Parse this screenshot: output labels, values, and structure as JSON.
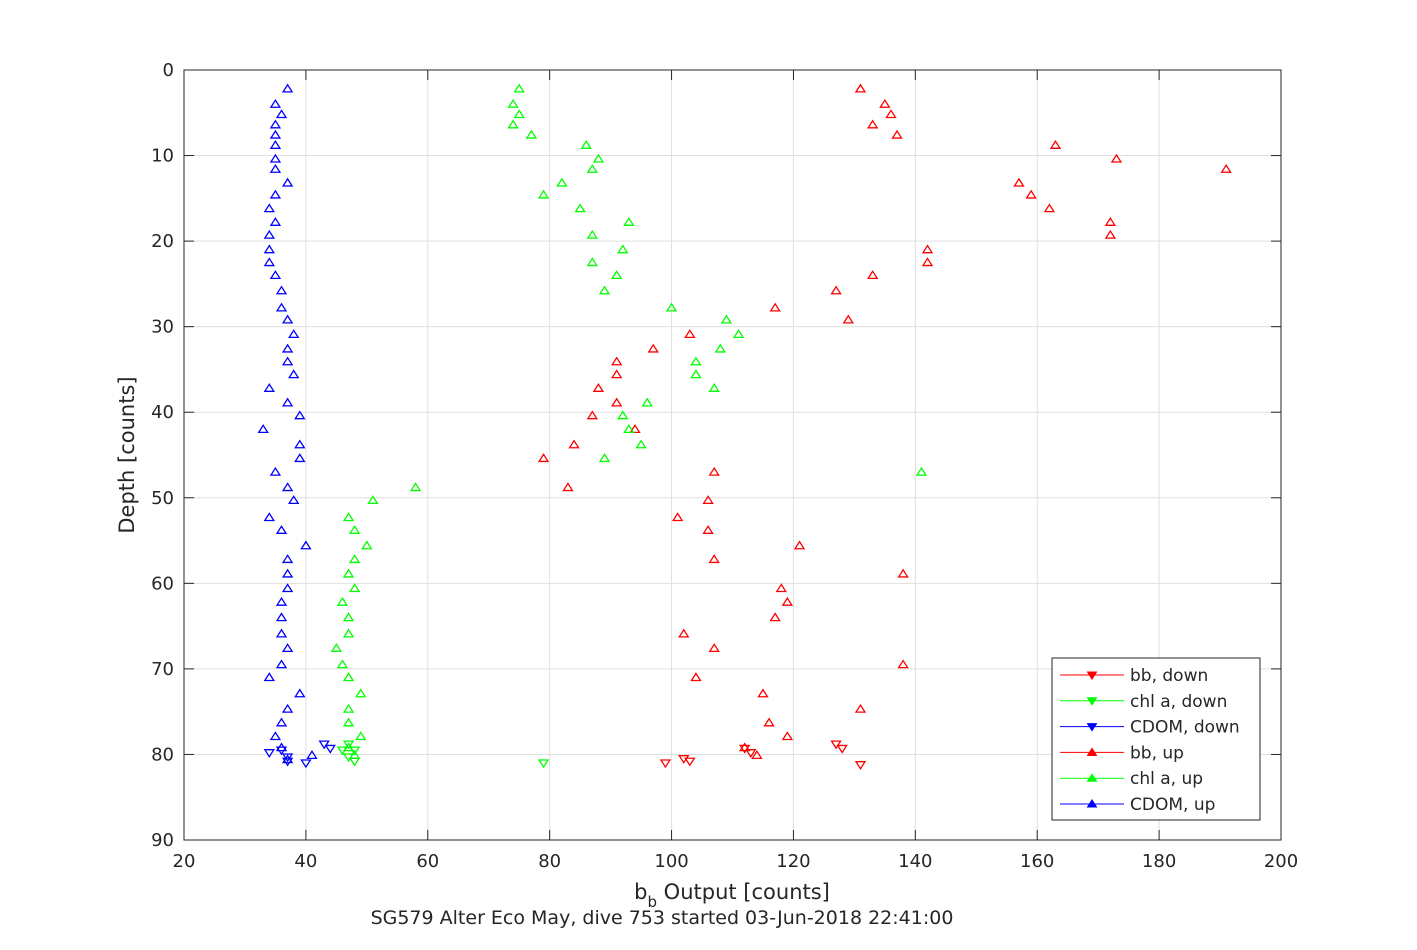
{
  "chart_data": {
    "type": "scatter",
    "title": "SG579 Alter Eco May, dive 753 started 03-Jun-2018 22:41:00",
    "xlabel": {
      "main": "b",
      "sub": "b",
      "rest": " Output [counts]"
    },
    "ylabel": "Depth [counts]",
    "xlim": [
      20,
      200
    ],
    "ylim": [
      0,
      90
    ],
    "y_reversed": true,
    "grid": true,
    "legend_position": "bottom-right",
    "x_ticks": [
      "20",
      "40",
      "60",
      "80",
      "100",
      "120",
      "140",
      "160",
      "180",
      "200"
    ],
    "y_ticks": [
      "0",
      "10",
      "20",
      "30",
      "40",
      "50",
      "60",
      "70",
      "80",
      "90"
    ],
    "series": [
      {
        "name": "bb, down",
        "color": "#ff0000",
        "marker": "triangle-down",
        "points": [
          [
            99,
            81.0
          ],
          [
            102,
            80.5
          ],
          [
            103,
            80.8
          ],
          [
            113,
            79.8
          ],
          [
            112,
            79.3
          ],
          [
            127,
            78.8
          ],
          [
            128,
            79.3
          ],
          [
            131,
            81.2
          ]
        ]
      },
      {
        "name": "chl a, down",
        "color": "#00ff00",
        "marker": "triangle-down",
        "points": [
          [
            79,
            81.0
          ],
          [
            48,
            80.8
          ],
          [
            47,
            80.3
          ],
          [
            46,
            79.5
          ],
          [
            48,
            79.5
          ],
          [
            47,
            78.8
          ]
        ]
      },
      {
        "name": "CDOM, down",
        "color": "#0000ff",
        "marker": "triangle-down",
        "points": [
          [
            40,
            81.0
          ],
          [
            37,
            80.8
          ],
          [
            37,
            80.3
          ],
          [
            34,
            79.8
          ],
          [
            44,
            79.3
          ],
          [
            43,
            78.8
          ],
          [
            36,
            79.5
          ]
        ]
      },
      {
        "name": "bb, up",
        "color": "#ff0000",
        "marker": "triangle-up",
        "points": [
          [
            131,
            2.2
          ],
          [
            135,
            4.0
          ],
          [
            136,
            5.2
          ],
          [
            133,
            6.4
          ],
          [
            137,
            7.6
          ],
          [
            163,
            8.8
          ],
          [
            173,
            10.4
          ],
          [
            191,
            11.6
          ],
          [
            157,
            13.2
          ],
          [
            159,
            14.6
          ],
          [
            162,
            16.2
          ],
          [
            172,
            17.8
          ],
          [
            172,
            19.3
          ],
          [
            142,
            21.0
          ],
          [
            142,
            22.5
          ],
          [
            133,
            24.0
          ],
          [
            127,
            25.8
          ],
          [
            117,
            27.8
          ],
          [
            129,
            29.2
          ],
          [
            103,
            30.9
          ],
          [
            97,
            32.6
          ],
          [
            91,
            34.1
          ],
          [
            91,
            35.6
          ],
          [
            88,
            37.2
          ],
          [
            91,
            38.9
          ],
          [
            87,
            40.4
          ],
          [
            94,
            42.0
          ],
          [
            84,
            43.8
          ],
          [
            79,
            45.4
          ],
          [
            107,
            47.0
          ],
          [
            83,
            48.8
          ],
          [
            106,
            50.3
          ],
          [
            101,
            52.3
          ],
          [
            106,
            53.8
          ],
          [
            121,
            55.6
          ],
          [
            107,
            57.2
          ],
          [
            138,
            58.9
          ],
          [
            118,
            60.6
          ],
          [
            119,
            62.2
          ],
          [
            117,
            64.0
          ],
          [
            102,
            65.9
          ],
          [
            107,
            67.6
          ],
          [
            138,
            69.5
          ],
          [
            104,
            71.0
          ],
          [
            115,
            72.9
          ],
          [
            131,
            74.7
          ],
          [
            116,
            76.3
          ],
          [
            119,
            77.9
          ],
          [
            112,
            79.2
          ],
          [
            114,
            80.1
          ]
        ]
      },
      {
        "name": "chl a, up",
        "color": "#00ff00",
        "marker": "triangle-up",
        "points": [
          [
            75,
            2.2
          ],
          [
            74,
            4.0
          ],
          [
            75,
            5.2
          ],
          [
            74,
            6.4
          ],
          [
            77,
            7.6
          ],
          [
            86,
            8.8
          ],
          [
            88,
            10.4
          ],
          [
            87,
            11.6
          ],
          [
            82,
            13.2
          ],
          [
            79,
            14.6
          ],
          [
            85,
            16.2
          ],
          [
            93,
            17.8
          ],
          [
            87,
            19.3
          ],
          [
            92,
            21.0
          ],
          [
            87,
            22.5
          ],
          [
            91,
            24.0
          ],
          [
            89,
            25.8
          ],
          [
            100,
            27.8
          ],
          [
            109,
            29.2
          ],
          [
            111,
            30.9
          ],
          [
            108,
            32.6
          ],
          [
            104,
            34.1
          ],
          [
            104,
            35.6
          ],
          [
            107,
            37.2
          ],
          [
            96,
            38.9
          ],
          [
            92,
            40.4
          ],
          [
            93,
            42.0
          ],
          [
            95,
            43.8
          ],
          [
            89,
            45.4
          ],
          [
            141,
            47.0
          ],
          [
            58,
            48.8
          ],
          [
            51,
            50.3
          ],
          [
            47,
            52.3
          ],
          [
            48,
            53.8
          ],
          [
            50,
            55.6
          ],
          [
            48,
            57.2
          ],
          [
            47,
            58.9
          ],
          [
            48,
            60.6
          ],
          [
            46,
            62.2
          ],
          [
            47,
            64.0
          ],
          [
            47,
            65.9
          ],
          [
            45,
            67.6
          ],
          [
            46,
            69.5
          ],
          [
            47,
            71.0
          ],
          [
            49,
            72.9
          ],
          [
            47,
            74.7
          ],
          [
            47,
            76.3
          ],
          [
            49,
            77.9
          ],
          [
            47,
            79.2
          ],
          [
            48,
            80.1
          ]
        ]
      },
      {
        "name": "CDOM, up",
        "color": "#0000ff",
        "marker": "triangle-up",
        "points": [
          [
            37,
            2.2
          ],
          [
            35,
            4.0
          ],
          [
            36,
            5.2
          ],
          [
            35,
            6.4
          ],
          [
            35,
            7.6
          ],
          [
            35,
            8.8
          ],
          [
            35,
            10.4
          ],
          [
            35,
            11.6
          ],
          [
            37,
            13.2
          ],
          [
            35,
            14.6
          ],
          [
            34,
            16.2
          ],
          [
            35,
            17.8
          ],
          [
            34,
            19.3
          ],
          [
            34,
            21.0
          ],
          [
            34,
            22.5
          ],
          [
            35,
            24.0
          ],
          [
            36,
            25.8
          ],
          [
            36,
            27.8
          ],
          [
            37,
            29.2
          ],
          [
            38,
            30.9
          ],
          [
            37,
            32.6
          ],
          [
            37,
            34.1
          ],
          [
            38,
            35.6
          ],
          [
            34,
            37.2
          ],
          [
            37,
            38.9
          ],
          [
            39,
            40.4
          ],
          [
            33,
            42.0
          ],
          [
            39,
            43.8
          ],
          [
            39,
            45.4
          ],
          [
            35,
            47.0
          ],
          [
            37,
            48.8
          ],
          [
            38,
            50.3
          ],
          [
            34,
            52.3
          ],
          [
            36,
            53.8
          ],
          [
            40,
            55.6
          ],
          [
            37,
            57.2
          ],
          [
            37,
            58.9
          ],
          [
            37,
            60.6
          ],
          [
            36,
            62.2
          ],
          [
            36,
            64.0
          ],
          [
            36,
            65.9
          ],
          [
            37,
            67.6
          ],
          [
            36,
            69.5
          ],
          [
            34,
            71.0
          ],
          [
            39,
            72.9
          ],
          [
            37,
            74.7
          ],
          [
            36,
            76.3
          ],
          [
            35,
            77.9
          ],
          [
            36,
            79.2
          ],
          [
            41,
            80.1
          ],
          [
            37,
            80.6
          ]
        ]
      }
    ]
  }
}
